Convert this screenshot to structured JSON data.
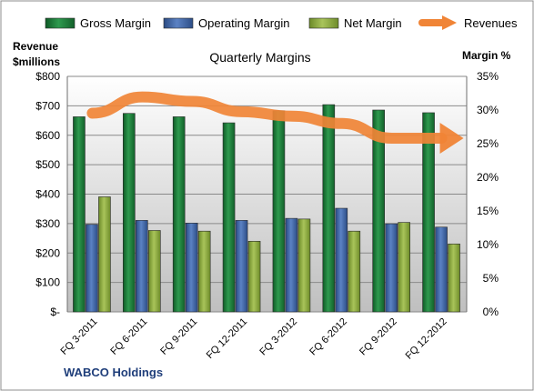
{
  "chart_data": {
    "type": "bar",
    "title": "Quarterly Margins",
    "company": "WABCO Holdings",
    "left_axis": {
      "label_line1": "Revenue",
      "label_line2": "$millions",
      "range": [
        0,
        800
      ],
      "ticks": [
        0,
        100,
        200,
        300,
        400,
        500,
        600,
        700,
        800
      ],
      "tick_labels": [
        "$-",
        "$100",
        "$200",
        "$300",
        "$400",
        "$500",
        "$600",
        "$700",
        "$800"
      ]
    },
    "right_axis": {
      "label": "Margin %",
      "range": [
        0,
        35
      ],
      "ticks": [
        0,
        5,
        10,
        15,
        20,
        25,
        30,
        35
      ],
      "tick_labels": [
        "0%",
        "5%",
        "10%",
        "15%",
        "20%",
        "25%",
        "30%",
        "35%"
      ]
    },
    "categories": [
      "FQ 3-2011",
      "FQ 6-2011",
      "FQ 9-2011",
      "FQ 12-2011",
      "FQ 3-2012",
      "FQ 6-2012",
      "FQ 9-2012",
      "FQ 12-2012"
    ],
    "series": [
      {
        "name": "Gross Margin",
        "kind": "bar",
        "axis": "right",
        "color": "#1e7a3a",
        "values": [
          29.0,
          29.5,
          29.0,
          28.1,
          29.9,
          30.8,
          30.0,
          29.6
        ]
      },
      {
        "name": "Operating Margin",
        "kind": "bar",
        "axis": "right",
        "color": "#3b62a3",
        "values": [
          13.0,
          13.6,
          13.2,
          13.6,
          13.9,
          15.4,
          13.1,
          12.6
        ]
      },
      {
        "name": "Net Margin",
        "kind": "bar",
        "axis": "right",
        "color": "#8aa83c",
        "values": [
          17.1,
          12.1,
          12.0,
          10.5,
          13.8,
          12.0,
          13.3,
          10.1
        ]
      },
      {
        "name": "Revenues",
        "kind": "line",
        "axis": "left",
        "color": "#f08436",
        "values": [
          675,
          730,
          715,
          680,
          665,
          640,
          590,
          590
        ]
      }
    ],
    "grid": true,
    "legend_position": "top"
  }
}
